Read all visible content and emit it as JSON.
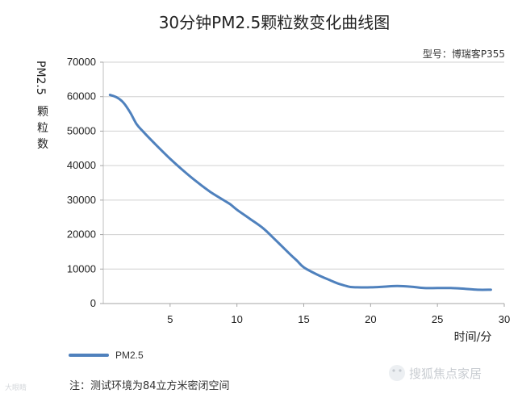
{
  "chart_data": {
    "type": "line",
    "title": "30分钟PM2.5颗粒数变化曲线图",
    "model_label": "型号：博瑞客P355",
    "xlabel": "时间/分",
    "ylabel": [
      "PM2.5",
      "颗",
      "粒",
      "数"
    ],
    "xlim": [
      0,
      30
    ],
    "ylim": [
      0,
      70000
    ],
    "x_ticks": [
      5,
      10,
      15,
      20,
      25,
      30
    ],
    "y_ticks": [
      0,
      10000,
      20000,
      30000,
      40000,
      50000,
      60000,
      70000
    ],
    "grid": true,
    "legend_position": "bottom-left",
    "series": [
      {
        "name": "PM2.5",
        "color": "#4f81bd",
        "x": [
          0.5,
          1,
          1.5,
          2,
          2.5,
          3,
          4,
          5,
          6,
          7,
          8,
          9,
          9.5,
          10,
          11,
          12,
          13,
          14,
          14.5,
          15,
          16,
          17,
          17.5,
          18,
          18.5,
          19,
          20,
          21,
          22,
          23,
          24,
          25,
          26,
          27,
          28,
          29
        ],
        "y": [
          60500,
          59800,
          58300,
          55500,
          52000,
          49800,
          45800,
          42000,
          38500,
          35300,
          32400,
          30000,
          28800,
          27200,
          24500,
          21700,
          18000,
          14200,
          12400,
          10500,
          8400,
          6700,
          5900,
          5300,
          4800,
          4700,
          4700,
          4900,
          5100,
          4900,
          4500,
          4500,
          4500,
          4300,
          4000,
          4000
        ]
      }
    ]
  },
  "note": "注：测试环境为84立方米密闭空间",
  "watermark": "搜狐焦点家居",
  "corner_mark": "大眼睛"
}
